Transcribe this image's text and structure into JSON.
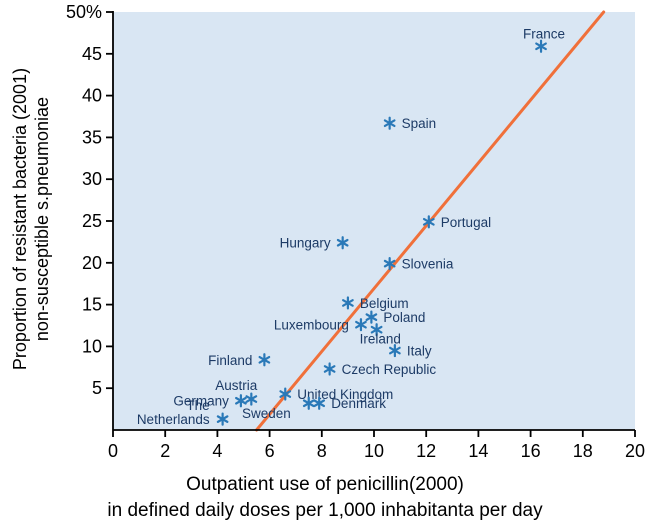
{
  "chart_data": {
    "type": "scatter",
    "title": "",
    "xlabel_line1": "Outpatient use of penicillin(2000)",
    "xlabel_line2": "in defined daily doses per 1,000 inhabitanta per day",
    "ylabel_line1": "Proportion of resistant bacteria (2001)",
    "ylabel_line2": "non-susceptible s.pneumoniae",
    "y_top_label": "50%",
    "xlim": [
      0,
      20
    ],
    "ylim": [
      0,
      50
    ],
    "x_ticks": [
      0,
      2,
      4,
      6,
      8,
      10,
      12,
      14,
      16,
      18,
      20
    ],
    "y_ticks": [
      5,
      10,
      15,
      20,
      25,
      30,
      35,
      40,
      45
    ],
    "grid": false,
    "points": [
      {
        "label": "France",
        "x": 16.4,
        "y": 45.9,
        "label_pos": "above"
      },
      {
        "label": "Spain",
        "x": 10.6,
        "y": 36.7,
        "label_pos": "right"
      },
      {
        "label": "Portugal",
        "x": 12.1,
        "y": 24.9,
        "label_pos": "right"
      },
      {
        "label": "Hungary",
        "x": 8.8,
        "y": 22.4,
        "label_pos": "left"
      },
      {
        "label": "Slovenia",
        "x": 10.6,
        "y": 19.9,
        "label_pos": "right"
      },
      {
        "label": "Belgium",
        "x": 9.0,
        "y": 15.2,
        "label_pos": "right"
      },
      {
        "label": "Poland",
        "x": 9.9,
        "y": 13.5,
        "label_pos": "right"
      },
      {
        "label": "Luxembourg",
        "x": 9.5,
        "y": 12.6,
        "label_pos": "left"
      },
      {
        "label": "Ireland",
        "x": 10.1,
        "y": 12.0,
        "label_pos": "below"
      },
      {
        "label": "Italy",
        "x": 10.8,
        "y": 9.5,
        "label_pos": "right"
      },
      {
        "label": "Finland",
        "x": 5.8,
        "y": 8.4,
        "label_pos": "left"
      },
      {
        "label": "Czech Republic",
        "x": 8.3,
        "y": 7.3,
        "label_pos": "right"
      },
      {
        "label": "United Kingdom",
        "x": 6.6,
        "y": 4.3,
        "label_pos": "right"
      },
      {
        "label": "Austria",
        "x": 5.3,
        "y": 3.7,
        "label_pos": "above-left"
      },
      {
        "label": "Germany",
        "x": 4.9,
        "y": 3.5,
        "label_pos": "left"
      },
      {
        "label": "Sweden",
        "x": 7.5,
        "y": 3.2,
        "label_pos": "below-left"
      },
      {
        "label": "Denmark",
        "x": 7.9,
        "y": 3.2,
        "label_pos": "right"
      },
      {
        "label": "The Netherlands",
        "x": 4.2,
        "y": 1.3,
        "label_pos": "left-wrap"
      }
    ],
    "trend_line": {
      "x1": 5.5,
      "y1": 0,
      "x2": 18.8,
      "y2": 50,
      "color": "#f0703a"
    }
  },
  "colors": {
    "plot_bg": "#d9e6f3",
    "marker": "#2a79b8",
    "country_label_text": "#1d3b66",
    "axis_text": "#000000",
    "axis_line": "#000000"
  }
}
